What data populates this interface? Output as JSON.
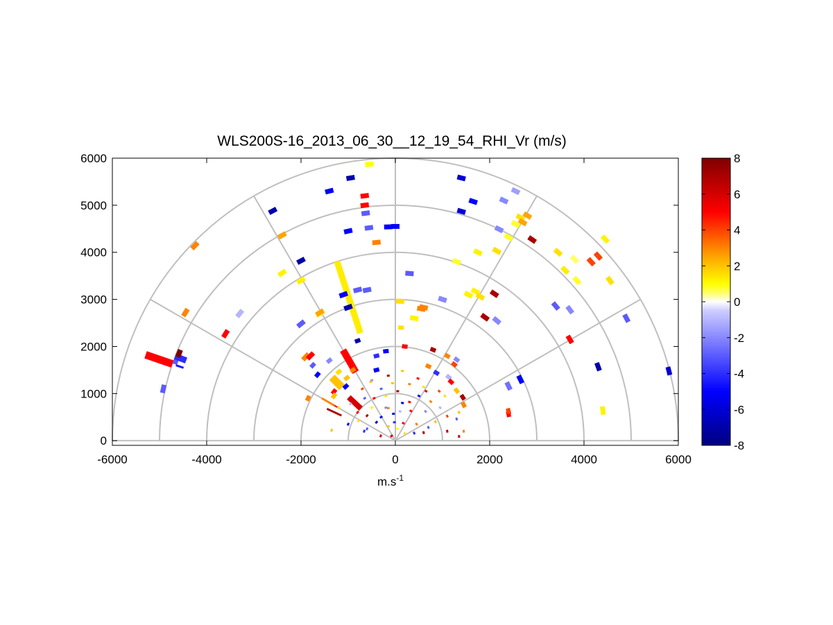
{
  "chart_data": {
    "type": "scatter",
    "title": "WLS200S-16_2013_06_30__12_19_54_RHI_Vr (m/s)",
    "xlabel": "m.s",
    "xlabel_sup": "-1",
    "ylabel": "",
    "xlim": [
      -6000,
      6000
    ],
    "ylim": [
      -100,
      6000
    ],
    "x_ticks": [
      "-6000",
      "-4000",
      "-2000",
      "0",
      "2000",
      "4000",
      "6000"
    ],
    "y_ticks": [
      "0",
      "1000",
      "2000",
      "3000",
      "4000",
      "5000",
      "6000"
    ],
    "polar_grid": {
      "ranges": [
        1000,
        2000,
        3000,
        4000,
        5000,
        6000
      ],
      "angles_deg": [
        0,
        30,
        60,
        90,
        120,
        150,
        180
      ]
    },
    "colorbar": {
      "min": -8,
      "max": 8,
      "ticks": [
        "8",
        "6",
        "4",
        "2",
        "0",
        "-2",
        "-4",
        "-6",
        "-8"
      ],
      "stops": [
        {
          "v": -8,
          "c": "#000080"
        },
        {
          "v": -5,
          "c": "#0000ff"
        },
        {
          "v": -0.5,
          "c": "#ccccff"
        },
        {
          "v": 0,
          "c": "#ffffff"
        },
        {
          "v": 0.5,
          "c": "#ffff66"
        },
        {
          "v": 1,
          "c": "#ffff00"
        },
        {
          "v": 2.5,
          "c": "#ffa500"
        },
        {
          "v": 5,
          "c": "#ff0000"
        },
        {
          "v": 8,
          "c": "#800000"
        }
      ]
    },
    "series": [
      {
        "values": [
          [
            -1400,
            5300,
            -5
          ],
          [
            -950,
            5580,
            -7
          ],
          [
            -2600,
            4880,
            -7
          ],
          [
            -2400,
            4360,
            2.5
          ],
          [
            -4250,
            4140,
            3
          ],
          [
            -2000,
            3820,
            -7
          ],
          [
            -2400,
            3560,
            1.2
          ],
          [
            -2000,
            3400,
            1.2
          ],
          [
            -1600,
            2700,
            1.2
          ],
          [
            -1600,
            2720,
            2.5
          ],
          [
            -1000,
            2830,
            -7
          ],
          [
            -800,
            2120,
            -7
          ],
          [
            -1900,
            1780,
            3
          ],
          [
            -560,
            4520,
            -3
          ],
          [
            -630,
            4830,
            -3
          ],
          [
            -400,
            4210,
            3
          ],
          [
            -1000,
            4450,
            -5
          ],
          [
            -650,
            5200,
            5
          ],
          [
            -650,
            5000,
            5
          ],
          [
            -550,
            5870,
            1
          ],
          [
            -150,
            4540,
            -5
          ],
          [
            0,
            4550,
            -5
          ],
          [
            1400,
            5580,
            -6
          ],
          [
            1650,
            5080,
            -5
          ],
          [
            1400,
            4870,
            -6
          ],
          [
            2300,
            5100,
            -2
          ],
          [
            2550,
            5300,
            -1.5
          ],
          [
            2650,
            4740,
            1.5
          ],
          [
            2700,
            4640,
            2.5
          ],
          [
            2800,
            4780,
            2.5
          ],
          [
            2550,
            4600,
            0.8
          ],
          [
            2200,
            4490,
            -2
          ],
          [
            2400,
            4320,
            0.8
          ],
          [
            2900,
            4270,
            7
          ],
          [
            1750,
            4000,
            1.2
          ],
          [
            2150,
            4030,
            1.5
          ],
          [
            3450,
            4000,
            1.5
          ],
          [
            3600,
            3620,
            1.3
          ],
          [
            3800,
            3850,
            0.5
          ],
          [
            3850,
            3400,
            0.8
          ],
          [
            4150,
            3800,
            4
          ],
          [
            4300,
            3920,
            4
          ],
          [
            4550,
            3400,
            1.5
          ],
          [
            4450,
            4280,
            1.2
          ],
          [
            1300,
            3800,
            0.8
          ],
          [
            1700,
            3170,
            1.2
          ],
          [
            1800,
            3060,
            1.5
          ],
          [
            1550,
            3100,
            1.2
          ],
          [
            2100,
            3120,
            7
          ],
          [
            1000,
            3000,
            -2
          ],
          [
            1900,
            2620,
            7
          ],
          [
            2150,
            2550,
            -2
          ],
          [
            3400,
            2860,
            -3
          ],
          [
            3700,
            2780,
            -2
          ],
          [
            3700,
            2150,
            5
          ],
          [
            4300,
            1570,
            -7
          ],
          [
            4900,
            2600,
            -3
          ],
          [
            5800,
            1480,
            -6
          ],
          [
            4400,
            640,
            1.2
          ],
          [
            2650,
            1300,
            -5
          ],
          [
            2400,
            1160,
            -2.5
          ],
          [
            2400,
            600,
            3
          ],
          [
            2400,
            560,
            5
          ],
          [
            2400,
            630,
            4
          ],
          [
            600,
            2830,
            3
          ],
          [
            550,
            2800,
            3
          ],
          [
            -800,
            3200,
            -3
          ],
          [
            -1100,
            3100,
            -5
          ],
          [
            -600,
            3200,
            -3
          ],
          [
            300,
            3550,
            -3
          ],
          [
            120,
            2400,
            1.5
          ],
          [
            100,
            2960,
            1.5
          ],
          [
            400,
            2600,
            1.2
          ],
          [
            -4920,
            1100,
            -3
          ],
          [
            -4450,
            2720,
            3
          ],
          [
            -3600,
            2270,
            5
          ],
          [
            -2000,
            2480,
            -3
          ],
          [
            -1800,
            1800,
            5
          ],
          [
            -1400,
            1700,
            -2
          ],
          [
            -1750,
            1600,
            -3
          ],
          [
            -1650,
            1400,
            -5
          ],
          [
            -1850,
            900,
            3
          ],
          [
            -1200,
            1460,
            1.5
          ],
          [
            -3300,
            2700,
            -1
          ],
          [
            -1300,
            1040,
            5
          ],
          [
            -1300,
            950,
            2
          ],
          [
            -1050,
            1150,
            -5
          ],
          [
            -1030,
            1330,
            2
          ],
          [
            -900,
            1500,
            3
          ],
          [
            -700,
            1100,
            4
          ],
          [
            -500,
            1280,
            -2
          ],
          [
            -400,
            1500,
            -5
          ],
          [
            -300,
            1100,
            -3
          ],
          [
            -150,
            1380,
            7
          ],
          [
            -60,
            1220,
            2
          ],
          [
            50,
            1050,
            7
          ],
          [
            150,
            1480,
            2
          ],
          [
            300,
            1200,
            3
          ],
          [
            480,
            1320,
            5
          ],
          [
            700,
            1580,
            3
          ],
          [
            870,
            1440,
            -4
          ],
          [
            1130,
            1350,
            -1
          ],
          [
            -400,
            1800,
            -4
          ],
          [
            -200,
            1900,
            -5
          ],
          [
            200,
            2000,
            5
          ],
          [
            800,
            1930,
            7
          ],
          [
            1100,
            1800,
            3
          ],
          [
            1250,
            1620,
            4
          ],
          [
            1300,
            1720,
            -2
          ],
          [
            600,
            1140,
            1.5
          ],
          [
            930,
            1050,
            4
          ],
          [
            1180,
            1250,
            5
          ],
          [
            1300,
            1060,
            2
          ],
          [
            1430,
            920,
            7
          ],
          [
            1450,
            760,
            3
          ],
          [
            1350,
            600,
            2
          ],
          [
            1300,
            460,
            -3
          ],
          [
            1450,
            200,
            3
          ],
          [
            1350,
            90,
            6
          ],
          [
            850,
            400,
            2
          ],
          [
            700,
            280,
            -3
          ],
          [
            450,
            350,
            3
          ],
          [
            600,
            170,
            7
          ],
          [
            -600,
            250,
            -3
          ],
          [
            -600,
            530,
            7
          ],
          [
            -150,
            690,
            3
          ],
          [
            -300,
            500,
            -5
          ],
          [
            -200,
            700,
            -2
          ],
          [
            -1350,
            220,
            2
          ],
          [
            -450,
            900,
            5
          ],
          [
            -660,
            200,
            -4
          ],
          [
            -310,
            100,
            6
          ],
          [
            -400,
            390,
            -6
          ],
          [
            -40,
            570,
            -6
          ],
          [
            -200,
            950,
            1.5
          ],
          [
            150,
            800,
            -5
          ],
          [
            300,
            820,
            5
          ],
          [
            500,
            950,
            -5
          ],
          [
            650,
            1050,
            6
          ],
          [
            -520,
            1250,
            2
          ],
          [
            -80,
            100,
            6
          ],
          [
            40,
            250,
            1
          ],
          [
            -20,
            390,
            -4
          ],
          [
            170,
            370,
            5
          ],
          [
            200,
            150,
            1.5
          ],
          [
            -500,
            700,
            1.2
          ],
          [
            -800,
            600,
            5
          ],
          [
            -950,
            780,
            -1
          ],
          [
            -1200,
            700,
            1.5
          ],
          [
            -1000,
            350,
            -5
          ],
          [
            1100,
            520,
            4
          ],
          [
            1100,
            200,
            7
          ],
          [
            950,
            700,
            -1
          ],
          [
            1050,
            950,
            1.5
          ],
          [
            750,
            830,
            3
          ],
          [
            640,
            620,
            -2
          ],
          [
            330,
            630,
            5
          ],
          [
            400,
            160,
            -4
          ],
          [
            -150,
            300,
            2
          ],
          [
            100,
            620,
            -1
          ],
          [
            -780,
            420,
            1.5
          ],
          [
            -650,
            900,
            -3
          ]
        ]
      }
    ],
    "rays": [
      {
        "r0": 2400,
        "r1": 4000,
        "deg": 108,
        "w": 9,
        "v": 1.3
      },
      {
        "r0": 5000,
        "r1": 5600,
        "deg": 161,
        "w": 11,
        "v": 5
      },
      {
        "r0": 4900,
        "r1": 5000,
        "deg": 160,
        "w": 10,
        "v": -3
      },
      {
        "r0": 4750,
        "r1": 5000,
        "deg": 159,
        "w": 9,
        "v": -4
      },
      {
        "r0": 4750,
        "r1": 4920,
        "deg": 161,
        "w": 3,
        "v": -4.5
      },
      {
        "r0": 4890,
        "r1": 5000,
        "deg": 158,
        "w": 11,
        "v": 8
      },
      {
        "r0": 1420,
        "r1": 1640,
        "deg": 150,
        "w": 2,
        "v": 5
      },
      {
        "r0": 1600,
        "r1": 1900,
        "deg": 135,
        "w": 11,
        "v": 2
      },
      {
        "r0": 1500,
        "r1": 1800,
        "deg": 150,
        "w": 3,
        "v": 3
      },
      {
        "r0": 1680,
        "r1": 2220,
        "deg": 120,
        "w": 10,
        "v": 5
      },
      {
        "r0": 1000,
        "r1": 1350,
        "deg": 137,
        "w": 8,
        "v": 6
      },
      {
        "r0": 1260,
        "r1": 1600,
        "deg": 155,
        "w": 3,
        "v": 7
      }
    ]
  }
}
